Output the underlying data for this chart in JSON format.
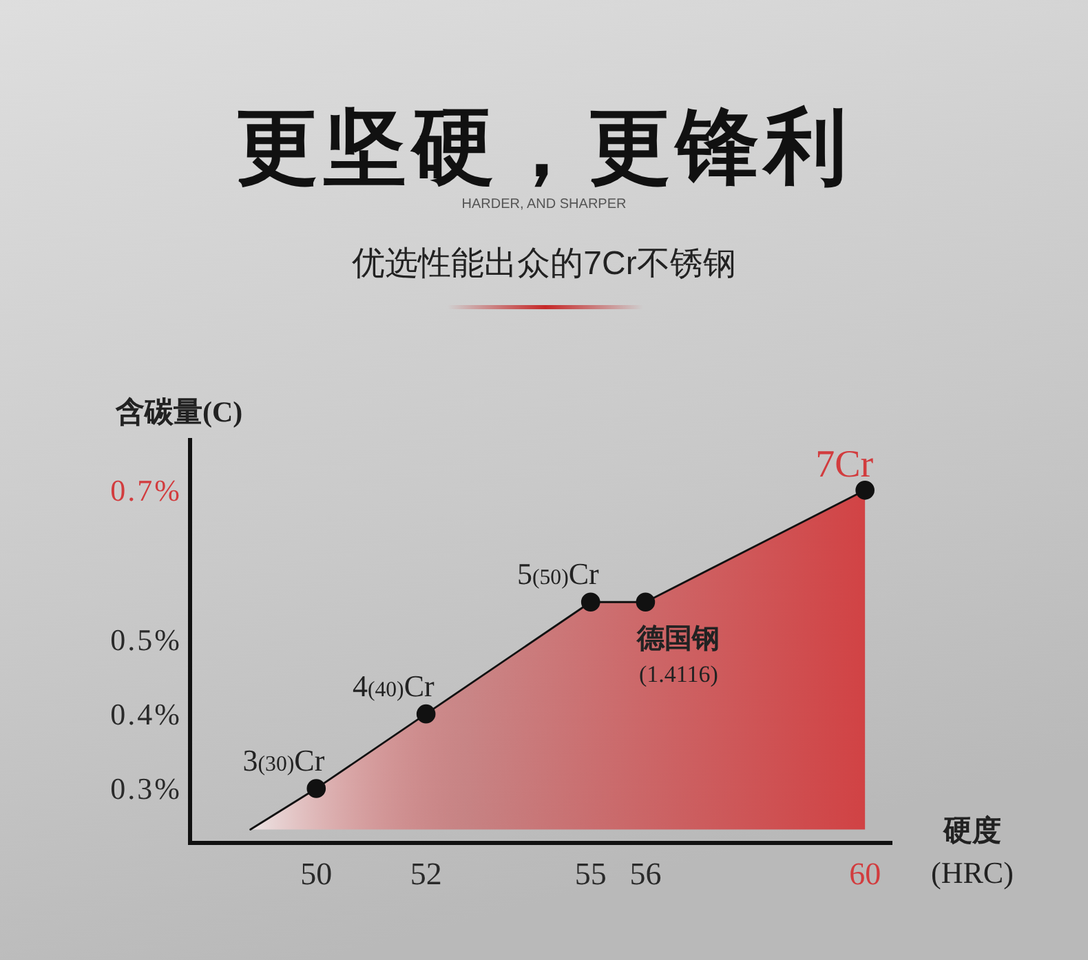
{
  "chart_data": {
    "type": "area",
    "title": "更坚硬，更锋利",
    "subtitle": "HARDER, AND SHARPER",
    "ylabel": "含碳量(C)",
    "xlabel": "硬度\n(HRC)",
    "xlim": [
      47.7,
      60.5
    ],
    "xticks": [
      50,
      52,
      55,
      56,
      60
    ],
    "ylim": [
      0.227,
      0.77
    ],
    "yticks": [
      {
        "value": 0.3,
        "label": "0.3%"
      },
      {
        "value": 0.4,
        "label": "0.4%"
      },
      {
        "value": 0.5,
        "label": "0.5%"
      },
      {
        "value": 0.7,
        "label": "0.7%"
      }
    ],
    "series": [
      {
        "color": "#d23c3e",
        "x": [
          48.8,
          50,
          52,
          55,
          56,
          60
        ],
        "values": [
          0.245,
          0.3,
          0.4,
          0.55,
          0.55,
          0.7
        ]
      },
      {
        "type": "scatter",
        "color": "#111111",
        "marker": "circle",
        "x": [
          50,
          52,
          55,
          56,
          60
        ],
        "values": [
          0.3,
          0.4,
          0.55,
          0.55,
          0.7
        ]
      }
    ],
    "annotations": [
      "优选性能出众的7Cr不锈钢",
      {
        "text": "3(30)Cr",
        "x": 50,
        "y": 0.3
      },
      {
        "text": "4(40)Cr",
        "x": 52,
        "y": 0.4
      },
      {
        "text": "5(50)Cr",
        "x": 55,
        "y": 0.55
      },
      {
        "text": "德国钢\n(1.4116)",
        "x": 56,
        "y": 0.55
      },
      {
        "text": "7Cr",
        "x": 60,
        "y": 0.7
      }
    ]
  }
}
